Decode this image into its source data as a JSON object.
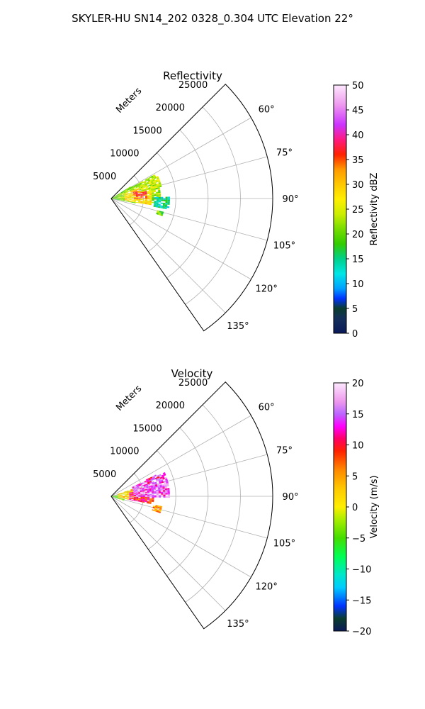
{
  "suptitle": "SKYLER-HU  SN14_202  0328_0.304 UTC Elevation 22°",
  "chart_data": [
    {
      "type": "polar-sector",
      "title": "Reflectivity",
      "range_label": "Meters",
      "range_ticks": [
        5000,
        10000,
        15000,
        20000,
        25000
      ],
      "range_tick_labels": [
        "5000",
        "10000",
        "15000",
        "20000",
        "25000"
      ],
      "r_max": 25000,
      "theta_range_deg": [
        45,
        145
      ],
      "angle_ticks": [
        60,
        75,
        90,
        105,
        120,
        135
      ],
      "angle_tick_labels": [
        "60°",
        "75°",
        "90°",
        "105°",
        "120°",
        "135°"
      ],
      "grid": true,
      "colorbar": {
        "label": "Reflectivity dBZ",
        "min": 0,
        "max": 50,
        "ticks": [
          0,
          5,
          10,
          15,
          20,
          25,
          30,
          35,
          40,
          45,
          50
        ],
        "tick_labels": [
          "0",
          "5",
          "10",
          "15",
          "20",
          "25",
          "30",
          "35",
          "40",
          "45",
          "50"
        ]
      },
      "echo_regions": [
        {
          "theta": [
            57,
            100
          ],
          "r": [
            0,
            3500
          ],
          "value": 20
        },
        {
          "theta": [
            60,
            95
          ],
          "r": [
            1000,
            7500
          ],
          "value": 22
        },
        {
          "theta": [
            68,
            98
          ],
          "r": [
            2000,
            6000
          ],
          "value": 28
        },
        {
          "theta": [
            72,
            90
          ],
          "r": [
            3500,
            5500
          ],
          "value": 35
        },
        {
          "theta": [
            64,
            76
          ],
          "r": [
            4500,
            8000
          ],
          "value": 24
        },
        {
          "theta": [
            88,
            100
          ],
          "r": [
            6500,
            9000
          ],
          "value": 14
        },
        {
          "theta": [
            104,
            110
          ],
          "r": [
            7200,
            8200
          ],
          "value": 20
        }
      ]
    },
    {
      "type": "polar-sector",
      "title": "Velocity",
      "range_label": "Meters",
      "range_ticks": [
        5000,
        10000,
        15000,
        20000,
        25000
      ],
      "range_tick_labels": [
        "5000",
        "10000",
        "15000",
        "20000",
        "25000"
      ],
      "r_max": 25000,
      "theta_range_deg": [
        45,
        145
      ],
      "angle_ticks": [
        60,
        75,
        90,
        105,
        120,
        135
      ],
      "angle_tick_labels": [
        "60°",
        "75°",
        "90°",
        "105°",
        "120°",
        "135°"
      ],
      "grid": true,
      "colorbar": {
        "label": "Velocity (m/s)",
        "min": -20,
        "max": 20,
        "ticks": [
          -20,
          -15,
          -10,
          -5,
          0,
          5,
          10,
          15,
          20
        ],
        "tick_labels": [
          "−20",
          "−15",
          "−10",
          "−5",
          "0",
          "5",
          "10",
          "15",
          "20"
        ]
      },
      "echo_regions": [
        {
          "theta": [
            80,
            110
          ],
          "r": [
            0,
            2000
          ],
          "value": -4
        },
        {
          "theta": [
            70,
            100
          ],
          "r": [
            1000,
            4000
          ],
          "value": 2
        },
        {
          "theta": [
            78,
            100
          ],
          "r": [
            2500,
            6500
          ],
          "value": 10
        },
        {
          "theta": [
            65,
            90
          ],
          "r": [
            3500,
            9000
          ],
          "value": 15
        },
        {
          "theta": [
            64,
            72
          ],
          "r": [
            5500,
            8000
          ],
          "value": 13
        },
        {
          "theta": [
            100,
            108
          ],
          "r": [
            6500,
            8000
          ],
          "value": 5
        }
      ]
    }
  ],
  "colors": {
    "reflectivity_stops": [
      [
        0,
        "#0b1a5a"
      ],
      [
        3,
        "#15305a"
      ],
      [
        5,
        "#0a3d2e"
      ],
      [
        7,
        "#0033ff"
      ],
      [
        9,
        "#00a0ff"
      ],
      [
        12,
        "#00e6e6"
      ],
      [
        15,
        "#00d08a"
      ],
      [
        18,
        "#33cc00"
      ],
      [
        21,
        "#77dd00"
      ],
      [
        24,
        "#ccee00"
      ],
      [
        27,
        "#ffee00"
      ],
      [
        30,
        "#ffc800"
      ],
      [
        33,
        "#ff9a00"
      ],
      [
        36,
        "#ff2200"
      ],
      [
        39,
        "#ff1a80"
      ],
      [
        42,
        "#cc33ff"
      ],
      [
        46,
        "#ee99ee"
      ],
      [
        50,
        "#fde8fd"
      ]
    ],
    "velocity_stops": [
      [
        -20,
        "#0b1a5a"
      ],
      [
        -18,
        "#0a3d2e"
      ],
      [
        -16,
        "#0033ff"
      ],
      [
        -13,
        "#00ccff"
      ],
      [
        -11,
        "#00e6cc"
      ],
      [
        -8,
        "#00ff55"
      ],
      [
        -5,
        "#44dd00"
      ],
      [
        -2,
        "#aaee00"
      ],
      [
        0,
        "#ffee00"
      ],
      [
        3,
        "#ffc800"
      ],
      [
        6,
        "#ff8800"
      ],
      [
        9,
        "#ff2200"
      ],
      [
        11,
        "#ff0066"
      ],
      [
        13,
        "#ff00ff"
      ],
      [
        15,
        "#bb66ff"
      ],
      [
        17,
        "#ee99ee"
      ],
      [
        20,
        "#fde8fd"
      ]
    ]
  }
}
